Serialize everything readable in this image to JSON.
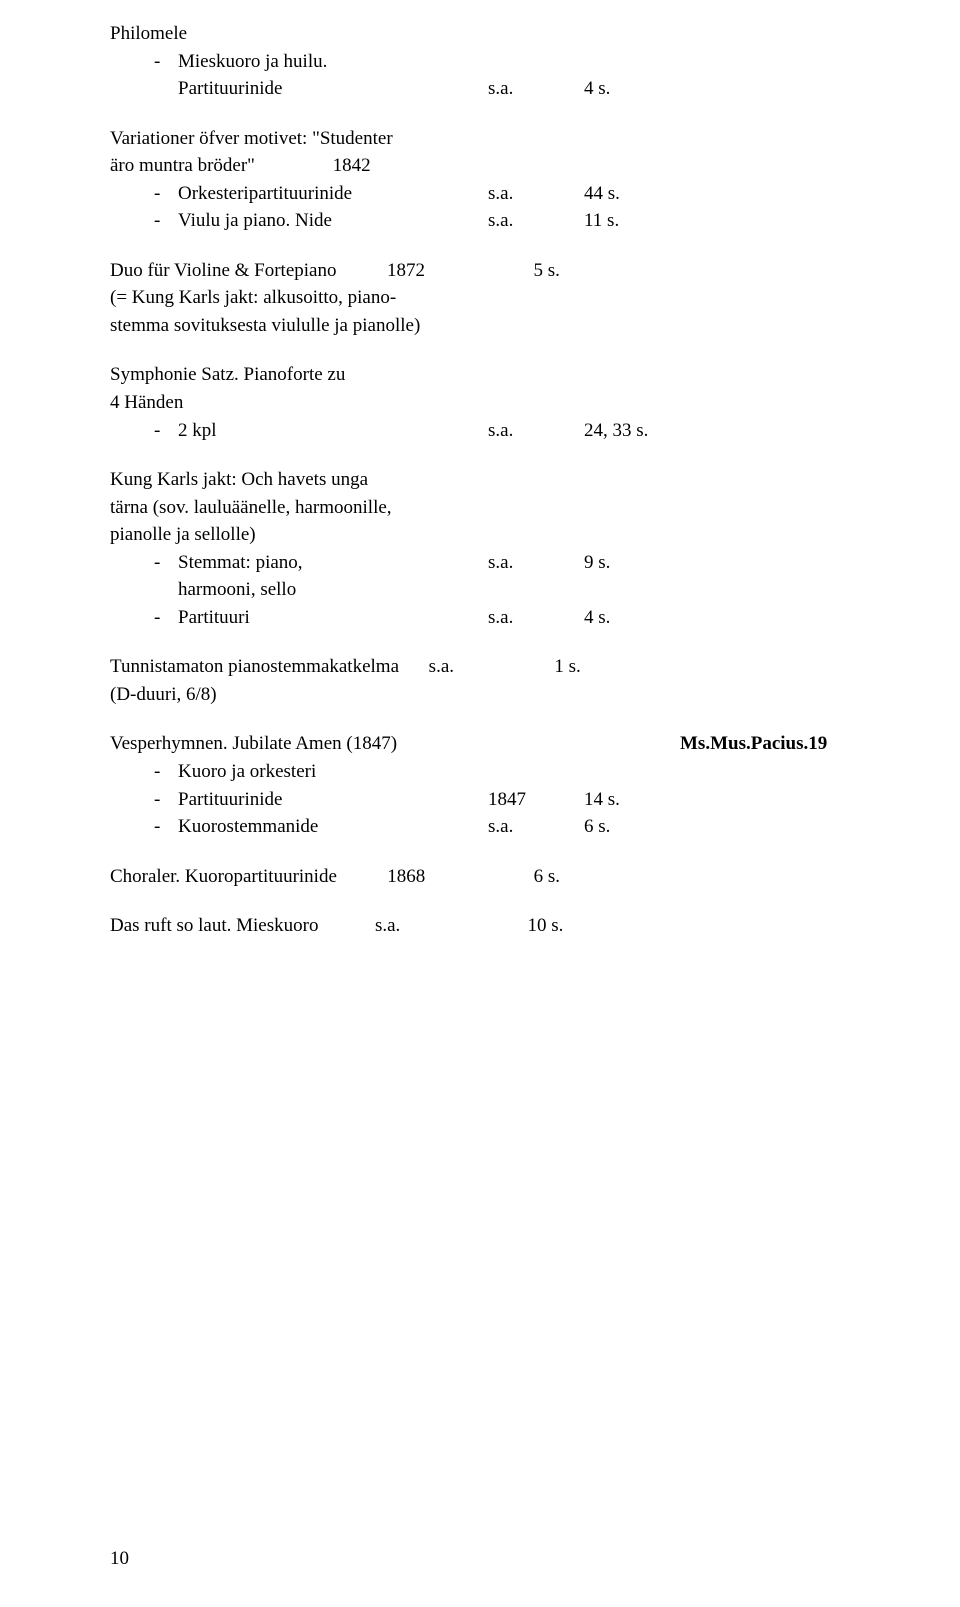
{
  "page_number": "10",
  "entries": [
    {
      "title_lines": [
        "Philomele"
      ],
      "subs": [
        {
          "dash": "-",
          "label": "Mieskuoro ja huilu.",
          "year": "",
          "pages": ""
        },
        {
          "dash": "",
          "label": "Partituurinide",
          "year": "s.a.",
          "pages": "4 s."
        }
      ]
    },
    {
      "title_lines": [
        "Variationer öfver motivet: \"Studenter"
      ],
      "title_tail": {
        "text": "äro muntra bröder\"",
        "year": "1842",
        "pages": ""
      },
      "subs": [
        {
          "dash": "-",
          "label": "Orkesteripartituurinide",
          "year": "s.a.",
          "pages": "44 s."
        },
        {
          "dash": "-",
          "label": "Viulu ja piano. Nide",
          "year": "s.a.",
          "pages": "11 s."
        }
      ]
    },
    {
      "title_lines": [
        "Duo für Violine & Fortepiano"
      ],
      "title_right": {
        "year": "1872",
        "pages": "5 s."
      },
      "cont_lines": [
        "(= Kung Karls jakt: alkusoitto, piano-",
        "stemma sovituksesta viululle ja pianolle)"
      ]
    },
    {
      "title_lines": [
        "Symphonie Satz. Pianoforte zu",
        "4 Händen"
      ],
      "subs": [
        {
          "dash": "-",
          "label": "2 kpl",
          "year": "s.a.",
          "pages": "24, 33 s."
        }
      ]
    },
    {
      "title_lines": [
        "Kung Karls jakt: Och havets unga",
        "tärna (sov. lauluäänelle, harmoonille,",
        "pianolle ja sellolle)"
      ],
      "subs": [
        {
          "dash": "-",
          "label": "Stemmat: piano,",
          "year": "s.a.",
          "pages": "9 s."
        },
        {
          "dash": "",
          "label": "harmooni, sello",
          "year": "",
          "pages": ""
        },
        {
          "dash": "-",
          "label": "Partituuri",
          "year": "s.a.",
          "pages": "4 s."
        }
      ]
    },
    {
      "title_lines": [
        "Tunnistamaton pianostemmakatkelma"
      ],
      "title_right": {
        "year": "s.a.",
        "pages": "1 s."
      },
      "cont_lines": [
        "(D-duuri, 6/8)"
      ]
    },
    {
      "title_lines": [
        "Vesperhymnen. Jubilate Amen (1847)"
      ],
      "title_far_right": "Ms.Mus.Pacius.19",
      "subs": [
        {
          "dash": "-",
          "label": "Kuoro ja orkesteri",
          "year": "",
          "pages": ""
        },
        {
          "dash": "-",
          "label": "Partituurinide",
          "year": "1847",
          "pages": "14 s."
        },
        {
          "dash": "-",
          "label": "Kuorostemmanide",
          "year": "s.a.",
          "pages": "6 s."
        }
      ]
    },
    {
      "title_lines": [
        "Choraler. Kuoropartituurinide"
      ],
      "title_right": {
        "year": "1868",
        "pages": "6 s."
      }
    },
    {
      "title_lines": [
        "Das ruft so laut. Mieskuoro"
      ],
      "title_right": {
        "year": "s.a.",
        "pages": "10 s."
      }
    }
  ]
}
